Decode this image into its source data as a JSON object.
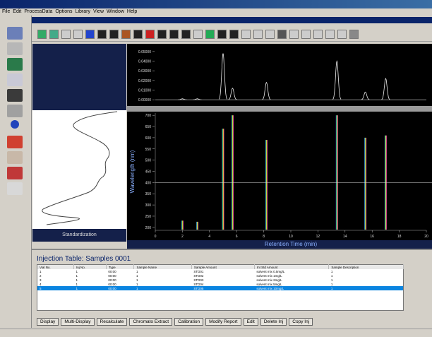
{
  "menu": [
    "File",
    "Edit",
    "ProcessData",
    "Options",
    "Library",
    "View",
    "Window",
    "Help"
  ],
  "spectrum_panel": {
    "label": "Standardization"
  },
  "chromatogram": {
    "ylim": [
      -0.005,
      0.055
    ],
    "yticks": [
      {
        "value": 0.0,
        "label": "0.00000"
      },
      {
        "value": 0.01,
        "label": "0.01000"
      },
      {
        "value": 0.02,
        "label": "0.02000"
      },
      {
        "value": 0.03,
        "label": "0.03000"
      },
      {
        "value": 0.04,
        "label": "0.04000"
      },
      {
        "value": 0.05,
        "label": "0.05000"
      }
    ],
    "peaks": [
      {
        "time": 2.0,
        "height": 0.001,
        "wl_max": 230
      },
      {
        "time": 3.1,
        "height": 0.001,
        "wl_max": 225
      },
      {
        "time": 5.0,
        "height": 0.048,
        "wl_max": 640
      },
      {
        "time": 5.7,
        "height": 0.012,
        "wl_max": 700
      },
      {
        "time": 8.2,
        "height": 0.018,
        "wl_max": 590
      },
      {
        "time": 13.4,
        "height": 0.04,
        "wl_max": 700
      },
      {
        "time": 15.5,
        "height": 0.008,
        "wl_max": 600
      },
      {
        "time": 17.0,
        "height": 0.022,
        "wl_max": 610
      }
    ]
  },
  "contour": {
    "ylabel": "Wavelength (nm)",
    "xlabel": "Retention Time (min)",
    "ylim": [
      190,
      710
    ],
    "yticks": [
      200,
      250,
      300,
      350,
      400,
      450,
      500,
      550,
      600,
      650,
      700
    ],
    "xlim": [
      0,
      20
    ],
    "xticks": [
      0,
      2,
      4,
      6,
      8,
      10,
      12,
      14,
      16,
      18,
      20
    ],
    "crosshair_nm": 400
  },
  "injection_table": {
    "title": "Injection Table: Samples 0001",
    "columns": [
      "Vial No.",
      "Inj No.",
      "Type",
      "Sample Name",
      "Sample Amount",
      "Int Std Amount",
      "Sample Description"
    ],
    "rows": [
      [
        "1",
        "1",
        "00:00",
        "1",
        "STD01",
        "solvent mix 0.5mg/L",
        "1"
      ],
      [
        "2",
        "1",
        "00:00",
        "1",
        "STD02",
        "solvent mix 1mg/L",
        "1"
      ],
      [
        "3",
        "1",
        "00:00",
        "1",
        "STD03",
        "solvent mix 2mg/L",
        "1"
      ],
      [
        "4",
        "1",
        "00:00",
        "1",
        "STD04",
        "solvent mix 5mg/L",
        "1"
      ],
      [
        "5",
        "1",
        "00:00",
        "1",
        "STD05",
        "solvent mix 10mg/L",
        "1"
      ]
    ],
    "selected_row": 4
  },
  "buttons": [
    "Display",
    "Multi-Display",
    "Recalculate",
    "Chromato Extract",
    "Calibration",
    "Modify Report",
    "Edit",
    "Delete Inj",
    "Copy Inj"
  ]
}
